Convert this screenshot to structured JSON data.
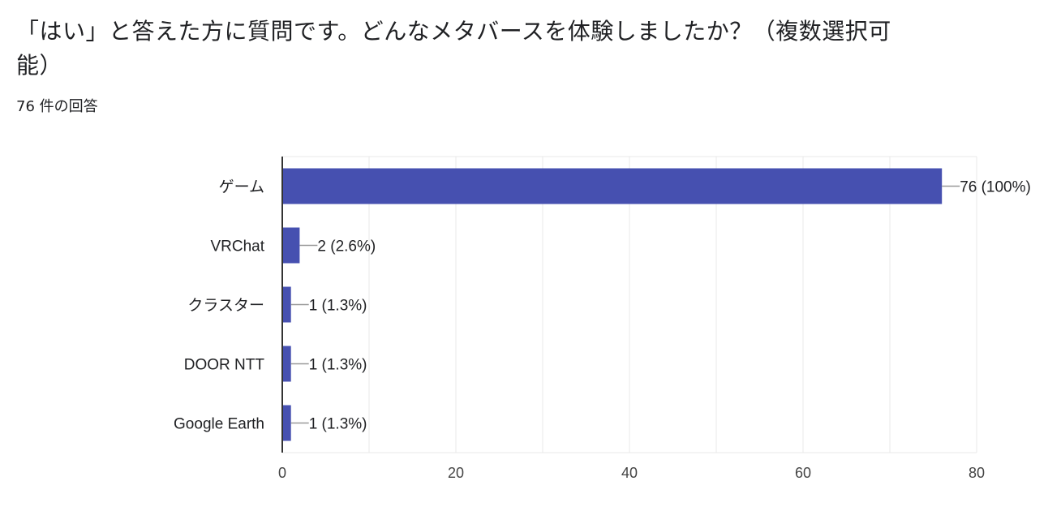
{
  "question": {
    "title": "「はい」と答えた方に質問です。どんなメタバースを体験しましたか？（複数選択可能）",
    "response_count": "76 件の回答"
  },
  "colors": {
    "bar": "#4650b0",
    "grid": "#e8e8e8",
    "axis": "#333333",
    "leader": "#999999"
  },
  "chart_data": {
    "type": "bar",
    "orientation": "horizontal",
    "categories": [
      "ゲーム",
      "VRChat",
      "クラスター",
      "DOOR NTT",
      "Google Earth"
    ],
    "values": [
      76,
      2,
      1,
      1,
      1
    ],
    "value_labels": [
      "76 (100%)",
      "2 (2.6%)",
      "1 (1.3%)",
      "1 (1.3%)",
      "1 (1.3%)"
    ],
    "xlim": [
      0,
      80
    ],
    "xticks": [
      0,
      20,
      40,
      60,
      80
    ],
    "grid": true,
    "legend": "none"
  }
}
